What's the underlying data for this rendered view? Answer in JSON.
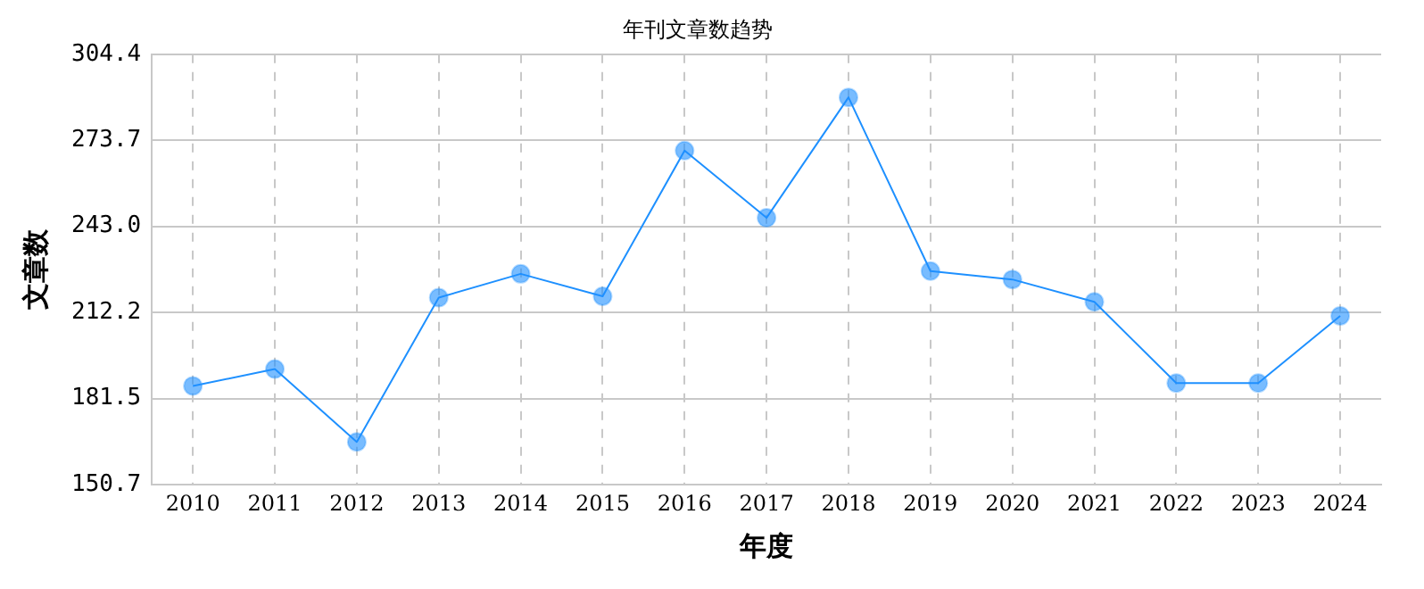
{
  "chart_data": {
    "type": "line",
    "title": "年刊文章数趋势",
    "xlabel": "年度",
    "ylabel": "文章数",
    "categories": [
      "2010",
      "2011",
      "2012",
      "2013",
      "2014",
      "2015",
      "2016",
      "2017",
      "2018",
      "2019",
      "2020",
      "2021",
      "2022",
      "2023",
      "2024"
    ],
    "series": [
      {
        "color": "#1e90ff",
        "values": [
          186,
          192,
          166,
          217.5,
          226,
          218,
          270,
          246,
          289,
          227,
          224,
          216,
          187,
          187,
          211
        ]
      }
    ],
    "ylim": [
      150.7,
      304.4
    ],
    "yticks": [
      {
        "value": 150.7,
        "label": "150.7"
      },
      {
        "value": 181.5,
        "label": "181.5"
      },
      {
        "value": 212.2,
        "label": "212.2"
      },
      {
        "value": 243.0,
        "label": "243.0"
      },
      {
        "value": 273.7,
        "label": "273.7"
      },
      {
        "value": 304.4,
        "label": "304.4"
      }
    ],
    "grid": true,
    "legend": false,
    "marker": "circle",
    "line_style": "solid"
  }
}
